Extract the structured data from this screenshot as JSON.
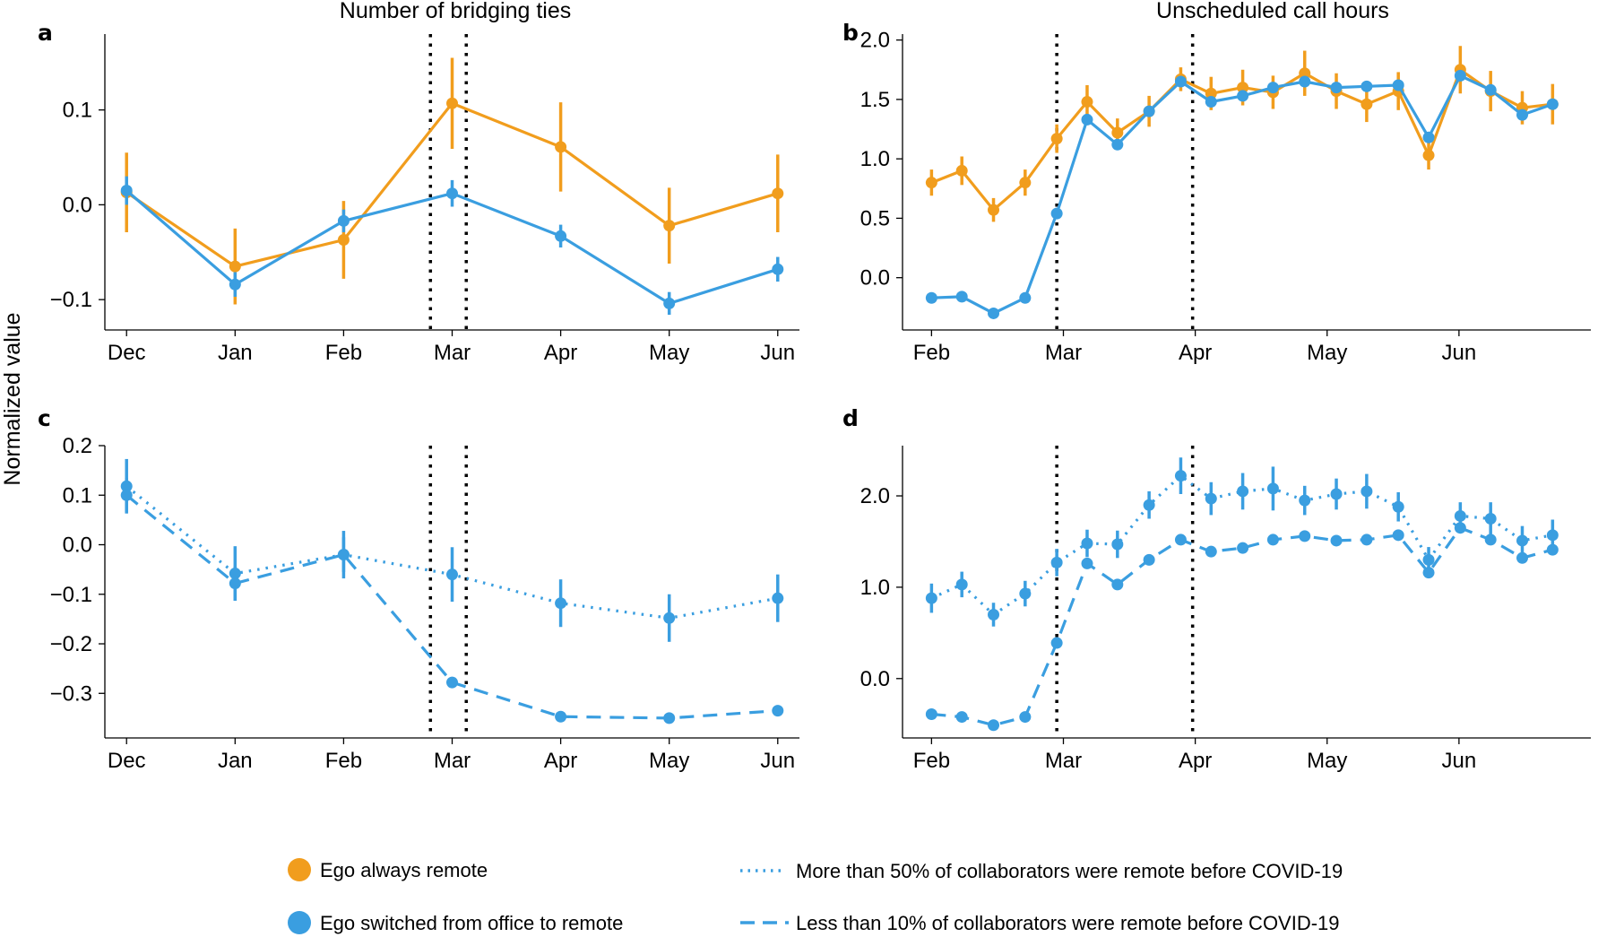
{
  "ylabel": "Normalized value",
  "colors": {
    "orange": "#f19d1d",
    "blue": "#3a9ee0"
  },
  "legend": {
    "orange": "Ego always remote",
    "blue": "Ego switched from office to remote",
    "dotted": "More than 50% of collaborators were remote before COVID-19",
    "dashed": "Less than 10% of collaborators were remote before COVID-19"
  },
  "chart_data": [
    {
      "letter": "a",
      "type": "line",
      "title": "Number of bridging ties",
      "x_is_index": true,
      "xlim": [
        -0.2,
        6.2
      ],
      "ylim": [
        -0.132,
        0.18
      ],
      "yticks": [
        -0.1,
        0.0,
        0.1
      ],
      "ytick_labels": [
        "−0.1",
        "0.0",
        "0.1"
      ],
      "xticks": [
        0,
        1,
        2,
        3,
        4,
        5,
        6
      ],
      "xtick_labels": [
        "Dec",
        "Jan",
        "Feb",
        "Mar",
        "Apr",
        "May",
        "Jun"
      ],
      "vlines": [
        2.8,
        3.13
      ],
      "series": [
        {
          "name": "Ego always remote",
          "color": "orange",
          "style": "solid",
          "x": [
            0,
            1,
            2,
            3,
            4,
            5,
            6
          ],
          "y": [
            0.013,
            -0.065,
            -0.037,
            0.107,
            0.061,
            -0.022,
            0.012
          ],
          "err": [
            0.042,
            0.04,
            0.041,
            0.048,
            0.047,
            0.04,
            0.041
          ]
        },
        {
          "name": "Ego switched from office to remote",
          "color": "blue",
          "style": "solid",
          "x": [
            0,
            1,
            2,
            3,
            4,
            5,
            6
          ],
          "y": [
            0.015,
            -0.084,
            -0.017,
            0.012,
            -0.033,
            -0.104,
            -0.068
          ],
          "err": [
            0.015,
            0.013,
            0.012,
            0.014,
            0.012,
            0.012,
            0.013
          ]
        }
      ]
    },
    {
      "letter": "b",
      "type": "line",
      "title": "Unscheduled call hours",
      "x_is_index": false,
      "xlim": [
        -0.22,
        5.0
      ],
      "ylim": [
        -0.44,
        2.05
      ],
      "yticks": [
        0.0,
        0.5,
        1.0,
        1.5,
        2.0
      ],
      "ytick_labels": [
        "0.0",
        "0.5",
        "1.0",
        "1.5",
        "2.0"
      ],
      "xticks": [
        0,
        1,
        2,
        3,
        4
      ],
      "xtick_labels": [
        "Feb",
        "Mar",
        "Apr",
        "May",
        "Jun"
      ],
      "vlines": [
        0.95,
        1.98
      ],
      "series": [
        {
          "name": "Ego always remote",
          "color": "orange",
          "style": "solid",
          "x": [
            0,
            0.23,
            0.47,
            0.71,
            0.95,
            1.18,
            1.41,
            1.65,
            1.89,
            2.12,
            2.36,
            2.59,
            2.83,
            3.07,
            3.3,
            3.54,
            3.77,
            4.01,
            4.24,
            4.48,
            4.71
          ],
          "y": [
            0.8,
            0.9,
            0.57,
            0.8,
            1.17,
            1.48,
            1.22,
            1.4,
            1.67,
            1.55,
            1.6,
            1.56,
            1.72,
            1.57,
            1.46,
            1.57,
            1.03,
            1.75,
            1.57,
            1.43,
            1.46
          ],
          "err": [
            0.11,
            0.12,
            0.1,
            0.11,
            0.12,
            0.14,
            0.12,
            0.13,
            0.1,
            0.14,
            0.15,
            0.14,
            0.19,
            0.15,
            0.15,
            0.16,
            0.12,
            0.2,
            0.17,
            0.14,
            0.17
          ]
        },
        {
          "name": "Ego switched from office to remote",
          "color": "blue",
          "style": "solid",
          "x": [
            0,
            0.23,
            0.47,
            0.71,
            0.95,
            1.18,
            1.41,
            1.65,
            1.89,
            2.12,
            2.36,
            2.59,
            2.83,
            3.07,
            3.3,
            3.54,
            3.77,
            4.01,
            4.24,
            4.48,
            4.71
          ],
          "y": [
            -0.17,
            -0.16,
            -0.3,
            -0.17,
            0.54,
            1.33,
            1.12,
            1.4,
            1.65,
            1.48,
            1.53,
            1.6,
            1.65,
            1.6,
            1.61,
            1.62,
            1.18,
            1.7,
            1.58,
            1.37,
            1.46
          ],
          "err": [
            0.02,
            0.02,
            0.02,
            0.02,
            0.03,
            0.03,
            0.03,
            0.03,
            0.04,
            0.04,
            0.03,
            0.03,
            0.03,
            0.03,
            0.03,
            0.03,
            0.03,
            0.03,
            0.03,
            0.03,
            0.03
          ]
        }
      ]
    },
    {
      "letter": "c",
      "type": "line",
      "title": "",
      "x_is_index": true,
      "xlim": [
        -0.2,
        6.2
      ],
      "ylim": [
        -0.39,
        0.2
      ],
      "yticks": [
        -0.3,
        -0.2,
        -0.1,
        0.0,
        0.1,
        0.2
      ],
      "ytick_labels": [
        "−0.3",
        "−0.2",
        "−0.1",
        "0.0",
        "0.1",
        "0.2"
      ],
      "xticks": [
        0,
        1,
        2,
        3,
        4,
        5,
        6
      ],
      "xtick_labels": [
        "Dec",
        "Jan",
        "Feb",
        "Mar",
        "Apr",
        "May",
        "Jun"
      ],
      "vlines": [
        2.8,
        3.13
      ],
      "series": [
        {
          "name": "More than 50% of collaborators were remote before COVID-19",
          "color": "blue",
          "style": "dotted",
          "x": [
            0,
            1,
            2,
            3,
            4,
            5,
            6
          ],
          "y": [
            0.118,
            -0.058,
            -0.02,
            -0.06,
            -0.118,
            -0.148,
            -0.108
          ],
          "err": [
            0.055,
            0.055,
            0.048,
            0.055,
            0.048,
            0.048,
            0.048
          ]
        },
        {
          "name": "Less than 10% of collaborators were remote before COVID-19",
          "color": "blue",
          "style": "dashed",
          "x": [
            0,
            1,
            2,
            3,
            4,
            5,
            6
          ],
          "y": [
            0.1,
            -0.078,
            -0.02,
            -0.278,
            -0.347,
            -0.35,
            -0.335
          ],
          "err": [
            0.035,
            0.035,
            0.035,
            0.006,
            0.006,
            0.006,
            0.006
          ]
        }
      ]
    },
    {
      "letter": "d",
      "type": "line",
      "title": "",
      "x_is_index": false,
      "xlim": [
        -0.22,
        5.0
      ],
      "ylim": [
        -0.65,
        2.55
      ],
      "yticks": [
        0.0,
        1.0,
        2.0
      ],
      "ytick_labels": [
        "0.0",
        "1.0",
        "2.0"
      ],
      "xticks": [
        0,
        1,
        2,
        3,
        4
      ],
      "xtick_labels": [
        "Feb",
        "Mar",
        "Apr",
        "May",
        "Jun"
      ],
      "vlines": [
        0.95,
        1.98
      ],
      "series": [
        {
          "name": "More than 50% of collaborators were remote before COVID-19",
          "color": "blue",
          "style": "dotted",
          "x": [
            0,
            0.23,
            0.47,
            0.71,
            0.95,
            1.18,
            1.41,
            1.65,
            1.89,
            2.12,
            2.36,
            2.59,
            2.83,
            3.07,
            3.3,
            3.54,
            3.77,
            4.01,
            4.24,
            4.48,
            4.71
          ],
          "y": [
            0.88,
            1.03,
            0.7,
            0.93,
            1.27,
            1.48,
            1.47,
            1.9,
            2.22,
            1.97,
            2.05,
            2.08,
            1.95,
            2.02,
            2.05,
            1.88,
            1.3,
            1.78,
            1.75,
            1.51,
            1.57
          ],
          "err": [
            0.16,
            0.14,
            0.13,
            0.14,
            0.15,
            0.15,
            0.15,
            0.15,
            0.2,
            0.18,
            0.2,
            0.24,
            0.16,
            0.17,
            0.19,
            0.16,
            0.14,
            0.15,
            0.18,
            0.16,
            0.17
          ]
        },
        {
          "name": "Less than 10% of collaborators were remote before COVID-19",
          "color": "blue",
          "style": "dashed",
          "x": [
            0,
            0.23,
            0.47,
            0.71,
            0.95,
            1.18,
            1.41,
            1.65,
            1.89,
            2.12,
            2.36,
            2.59,
            2.83,
            3.07,
            3.3,
            3.54,
            3.77,
            4.01,
            4.24,
            4.48,
            4.71
          ],
          "y": [
            -0.39,
            -0.42,
            -0.51,
            -0.42,
            0.39,
            1.26,
            1.03,
            1.3,
            1.52,
            1.39,
            1.43,
            1.52,
            1.56,
            1.51,
            1.52,
            1.57,
            1.16,
            1.65,
            1.52,
            1.32,
            1.41
          ],
          "err": [
            0.03,
            0.03,
            0.03,
            0.03,
            0.04,
            0.04,
            0.04,
            0.04,
            0.04,
            0.04,
            0.04,
            0.04,
            0.04,
            0.04,
            0.04,
            0.04,
            0.04,
            0.04,
            0.04,
            0.04,
            0.04
          ]
        }
      ]
    }
  ]
}
